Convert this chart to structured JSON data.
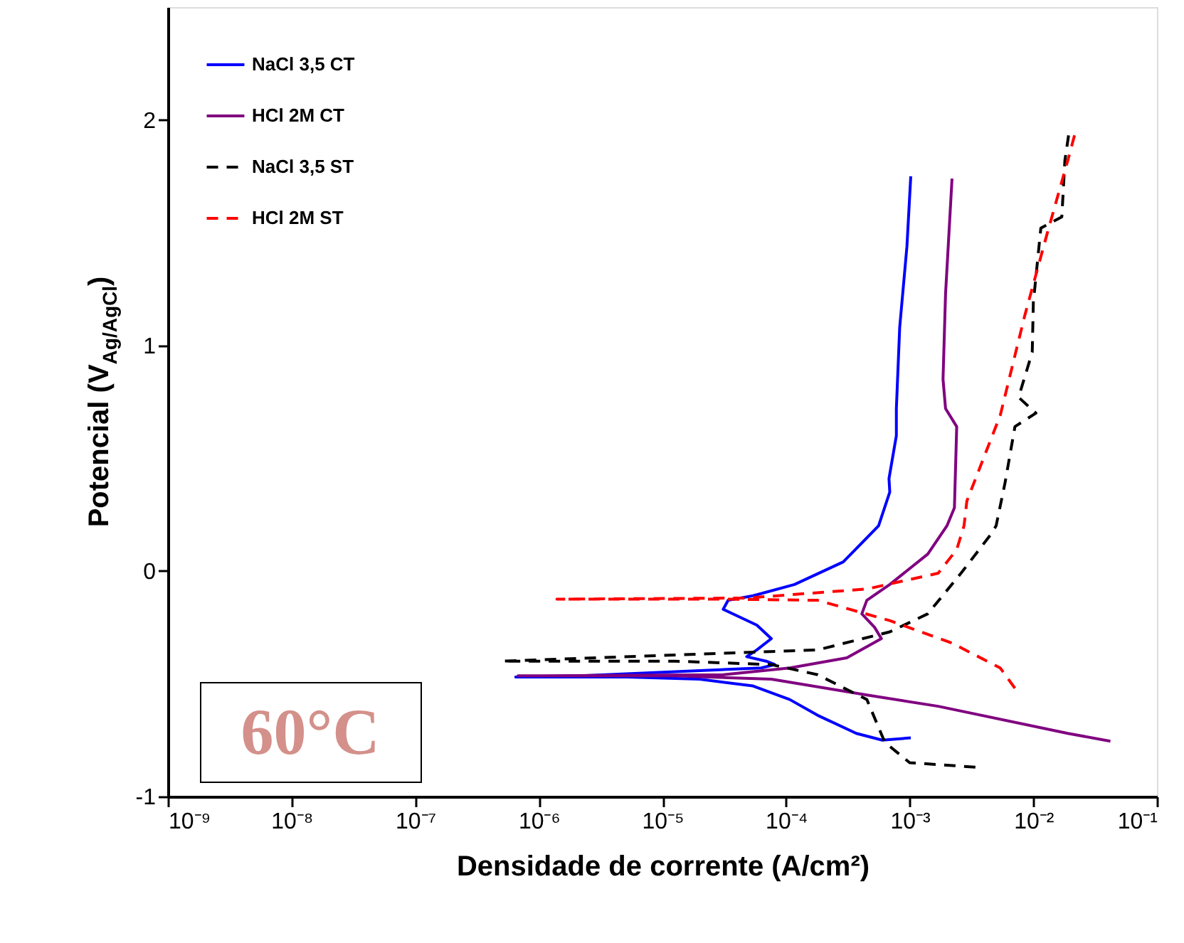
{
  "chart_data": {
    "type": "line",
    "xlabel": "Densidade de corrente (A/cm²)",
    "ylabel": "Potencial (V$_{Ag/AgCl}$)",
    "log": "x",
    "xlim": [
      1e-09,
      0.1
    ],
    "ylim": [
      -1,
      2.5
    ],
    "xticks": [
      {
        "value": 1e-09,
        "label": "10⁻⁹"
      },
      {
        "value": 1e-08,
        "label": "10⁻⁸"
      },
      {
        "value": 1e-07,
        "label": "10⁻⁷"
      },
      {
        "value": 1e-06,
        "label": "10⁻⁶"
      },
      {
        "value": 1e-05,
        "label": "10⁻⁵"
      },
      {
        "value": 0.0001,
        "label": "10⁻⁴"
      },
      {
        "value": 0.001,
        "label": "10⁻³"
      },
      {
        "value": 0.01,
        "label": "10⁻²"
      },
      {
        "value": 0.1,
        "label": "10⁻¹"
      }
    ],
    "yticks": [
      -1,
      0,
      1,
      2
    ],
    "grid": false,
    "legend": "top left",
    "marker": "none",
    "annotations": [
      "60°C"
    ],
    "series": [
      {
        "name": "NaCl 3,5 CT",
        "color": "#0000ff",
        "line_style": "solid",
        "x": [
          0.00102,
          0.0006,
          0.00037,
          0.00018,
          0.000107,
          5.4e-05,
          2e-05,
          5.2e-06,
          6.5e-07,
          2.2e-06,
          6.3e-05,
          8.1e-05,
          6.9e-05,
          4.8e-05,
          5.8e-05,
          7.6e-05,
          5.8e-05,
          3.1e-05,
          3.4e-05,
          5.4e-05,
          0.000117,
          0.00029,
          0.00056,
          0.00069,
          0.00068,
          0.00078,
          0.00078,
          0.00083,
          0.00095,
          0.00102
        ],
        "values": [
          -0.74,
          -0.75,
          -0.72,
          -0.64,
          -0.57,
          -0.51,
          -0.48,
          -0.47,
          -0.47,
          -0.465,
          -0.43,
          -0.415,
          -0.4,
          -0.38,
          -0.35,
          -0.3,
          -0.24,
          -0.17,
          -0.13,
          -0.11,
          -0.06,
          0.04,
          0.2,
          0.35,
          0.41,
          0.6,
          0.72,
          1.08,
          1.44,
          1.75
        ]
      },
      {
        "name": "HCl 2M CT",
        "color": "#800080",
        "line_style": "solid",
        "x": [
          0.042,
          0.019,
          0.0017,
          0.00045,
          7.6e-05,
          1.26e-05,
          6.8e-07,
          3.1e-05,
          0.000107,
          0.00031,
          0.00059,
          0.00052,
          0.00041,
          0.00045,
          0.00069,
          0.0014,
          0.002,
          0.0023,
          0.0024,
          0.00195,
          0.00186,
          0.00195,
          0.0022
        ],
        "values": [
          -0.755,
          -0.72,
          -0.6,
          -0.55,
          -0.48,
          -0.465,
          -0.465,
          -0.46,
          -0.43,
          -0.385,
          -0.3,
          -0.25,
          -0.19,
          -0.13,
          -0.06,
          0.075,
          0.2,
          0.28,
          0.64,
          0.72,
          0.85,
          1.23,
          1.74
        ]
      },
      {
        "name": "NaCl 3,5 ST",
        "color": "#000000",
        "line_style": "dashed",
        "x": [
          0.0034,
          0.001,
          0.00063,
          0.00045,
          0.00018,
          7.6e-05,
          1.26e-05,
          5.1e-07,
          0.00018,
          0.00069,
          0.0014,
          0.0026,
          0.0045,
          0.005,
          0.0059,
          0.0071,
          0.0105,
          0.0076,
          0.0098,
          0.01,
          0.0115,
          0.017,
          0.018,
          0.0195
        ],
        "values": [
          -0.87,
          -0.85,
          -0.76,
          -0.57,
          -0.46,
          -0.415,
          -0.4,
          -0.4,
          -0.35,
          -0.27,
          -0.19,
          -0.01,
          0.16,
          0.2,
          0.39,
          0.64,
          0.7,
          0.77,
          0.97,
          1.19,
          1.52,
          1.57,
          1.82,
          1.95
        ]
      },
      {
        "name": "HCl 2M ST",
        "color": "#ff0000",
        "line_style": "dashed",
        "x": [
          0.0071,
          0.0054,
          0.0022,
          0.00069,
          0.00018,
          3.1e-05,
          1.4e-06,
          4.8e-05,
          0.00045,
          0.0017,
          0.0024,
          0.00275,
          0.0029,
          0.0054,
          0.0085,
          0.013,
          0.019,
          0.022
        ],
        "values": [
          -0.52,
          -0.43,
          -0.32,
          -0.22,
          -0.13,
          -0.125,
          -0.125,
          -0.12,
          -0.08,
          -0.01,
          0.095,
          0.2,
          0.31,
          0.69,
          1.13,
          1.5,
          1.82,
          1.95
        ]
      }
    ]
  }
}
